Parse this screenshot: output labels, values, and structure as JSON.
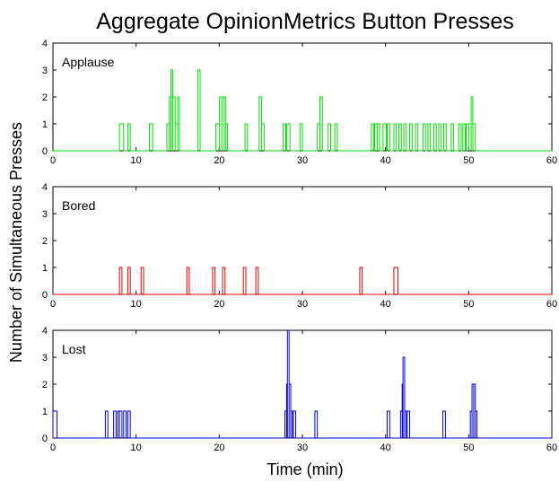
{
  "chart_data": {
    "type": "line",
    "title": "Aggregate OpinionMetrics Button Presses",
    "xlabel": "Time (min)",
    "ylabel": "Number of Simultaneous Presses",
    "xlim": [
      0,
      60
    ],
    "x_ticks": [
      0,
      10,
      20,
      30,
      40,
      50,
      60
    ],
    "grid": false,
    "panels": [
      {
        "label": "Applause",
        "color": "#00e000",
        "ylim": [
          0,
          4
        ],
        "y_ticks": [
          0,
          1,
          2,
          3,
          4
        ],
        "events": [
          [
            8.0,
            8.5,
            1
          ],
          [
            9.0,
            9.3,
            1
          ],
          [
            11.6,
            12.0,
            1
          ],
          [
            13.7,
            14.0,
            1
          ],
          [
            14.0,
            14.2,
            2
          ],
          [
            14.2,
            14.4,
            3
          ],
          [
            14.4,
            14.7,
            2
          ],
          [
            14.7,
            15.0,
            1
          ],
          [
            15.0,
            15.2,
            2
          ],
          [
            17.4,
            17.7,
            3
          ],
          [
            19.6,
            20.0,
            1
          ],
          [
            20.0,
            20.3,
            2
          ],
          [
            20.3,
            20.6,
            2
          ],
          [
            20.6,
            20.8,
            2
          ],
          [
            20.8,
            21.0,
            1
          ],
          [
            23.1,
            23.4,
            1
          ],
          [
            24.8,
            25.1,
            2
          ],
          [
            25.1,
            25.4,
            1
          ],
          [
            27.7,
            28.0,
            1
          ],
          [
            28.1,
            28.5,
            1
          ],
          [
            29.7,
            30.0,
            1
          ],
          [
            31.8,
            32.1,
            1
          ],
          [
            32.1,
            32.4,
            2
          ],
          [
            33.1,
            33.4,
            1
          ],
          [
            33.9,
            34.2,
            1
          ],
          [
            38.3,
            38.6,
            1
          ],
          [
            38.7,
            39.0,
            1
          ],
          [
            39.0,
            39.3,
            1
          ],
          [
            39.7,
            40.1,
            1
          ],
          [
            40.2,
            40.5,
            1
          ],
          [
            41.0,
            41.3,
            1
          ],
          [
            41.6,
            41.9,
            1
          ],
          [
            42.2,
            42.5,
            1
          ],
          [
            42.9,
            43.2,
            1
          ],
          [
            43.6,
            43.9,
            1
          ],
          [
            44.5,
            44.8,
            1
          ],
          [
            45.1,
            45.4,
            1
          ],
          [
            45.8,
            46.1,
            1
          ],
          [
            46.4,
            46.7,
            1
          ],
          [
            47.0,
            47.3,
            1
          ],
          [
            47.9,
            48.2,
            1
          ],
          [
            48.8,
            49.1,
            1
          ],
          [
            49.3,
            49.6,
            1
          ],
          [
            49.7,
            50.0,
            1
          ],
          [
            50.0,
            50.3,
            1
          ],
          [
            50.3,
            50.5,
            2
          ],
          [
            50.5,
            50.8,
            1
          ]
        ]
      },
      {
        "label": "Bored",
        "color": "#e00000",
        "ylim": [
          0,
          4
        ],
        "y_ticks": [
          0,
          1,
          2,
          3,
          4
        ],
        "events": [
          [
            8.0,
            8.3,
            1
          ],
          [
            9.0,
            9.3,
            1
          ],
          [
            10.6,
            10.9,
            1
          ],
          [
            16.1,
            16.4,
            1
          ],
          [
            19.2,
            19.5,
            1
          ],
          [
            20.4,
            20.7,
            1
          ],
          [
            22.9,
            23.2,
            1
          ],
          [
            24.4,
            24.7,
            1
          ],
          [
            36.9,
            37.2,
            1
          ],
          [
            41.0,
            41.5,
            1
          ]
        ]
      },
      {
        "label": "Lost",
        "color": "#0000e0",
        "ylim": [
          0,
          4
        ],
        "y_ticks": [
          0,
          1,
          2,
          3,
          4
        ],
        "events": [
          [
            0.0,
            0.5,
            1
          ],
          [
            6.3,
            6.6,
            1
          ],
          [
            7.3,
            7.6,
            1
          ],
          [
            7.8,
            8.0,
            1
          ],
          [
            8.0,
            8.3,
            1
          ],
          [
            8.5,
            8.8,
            1
          ],
          [
            9.0,
            9.3,
            1
          ],
          [
            27.9,
            28.1,
            1
          ],
          [
            28.1,
            28.2,
            2
          ],
          [
            28.2,
            28.4,
            4
          ],
          [
            28.4,
            28.6,
            2
          ],
          [
            28.6,
            28.8,
            1
          ],
          [
            28.9,
            29.2,
            1
          ],
          [
            31.5,
            31.8,
            1
          ],
          [
            40.2,
            40.5,
            1
          ],
          [
            41.8,
            42.0,
            1
          ],
          [
            42.0,
            42.1,
            2
          ],
          [
            42.1,
            42.3,
            3
          ],
          [
            42.3,
            42.5,
            1
          ],
          [
            42.6,
            42.9,
            1
          ],
          [
            46.9,
            47.2,
            1
          ],
          [
            50.2,
            50.4,
            1
          ],
          [
            50.4,
            50.6,
            2
          ],
          [
            50.6,
            50.8,
            2
          ],
          [
            50.8,
            51.0,
            1
          ]
        ]
      }
    ]
  }
}
